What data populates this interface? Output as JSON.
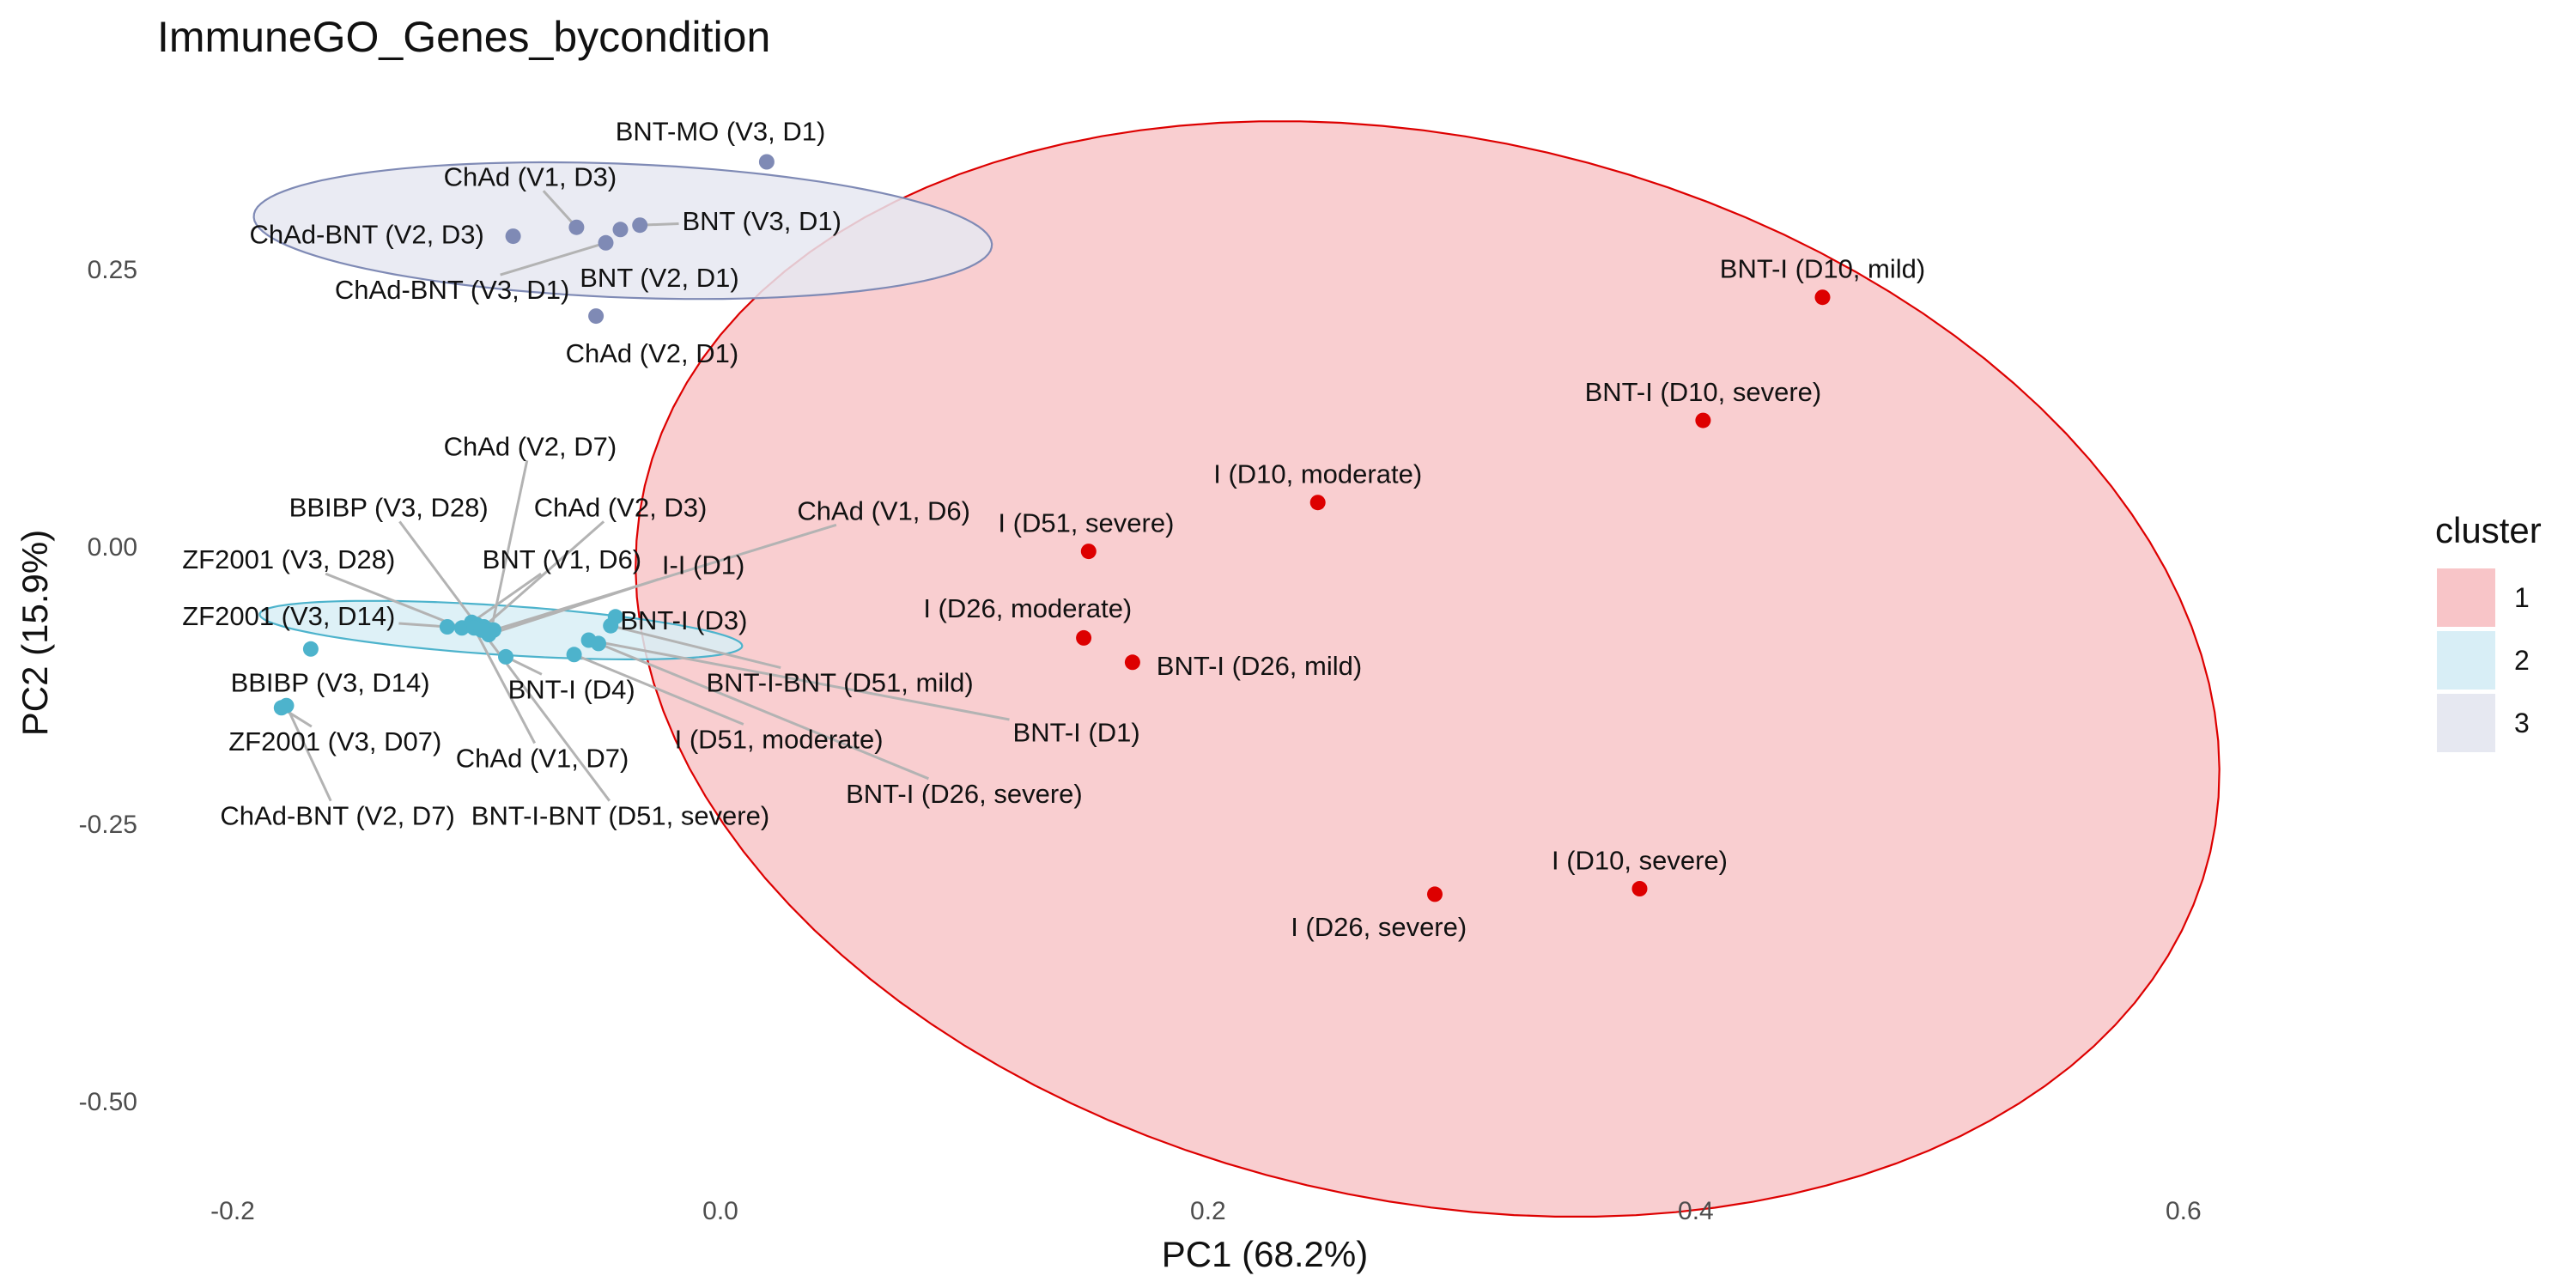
{
  "chart_data": {
    "type": "scatter",
    "title": "ImmuneGO_Genes_bycondition",
    "xlabel": "PC1 (68.2%)",
    "ylabel": "PC2 (15.9%)",
    "xlim": [
      -0.225,
      0.68
    ],
    "ylim": [
      -0.575,
      0.4
    ],
    "x_ticks": [
      {
        "value": -0.2,
        "label": "-0.2"
      },
      {
        "value": 0.0,
        "label": "0.0"
      },
      {
        "value": 0.2,
        "label": "0.2"
      },
      {
        "value": 0.4,
        "label": "0.4"
      },
      {
        "value": 0.6,
        "label": "0.6"
      }
    ],
    "y_ticks": [
      {
        "value": 0.25,
        "label": "0.25"
      },
      {
        "value": 0.0,
        "label": "0.00"
      },
      {
        "value": -0.25,
        "label": "-0.25"
      },
      {
        "value": -0.5,
        "label": "-0.50"
      }
    ],
    "grid": false,
    "legend": {
      "title": "cluster",
      "position": "right",
      "entries": [
        {
          "label": "1",
          "cluster": 1
        },
        {
          "label": "2",
          "cluster": 2
        },
        {
          "label": "3",
          "cluster": 3
        }
      ]
    },
    "clusters": [
      {
        "id": 1,
        "point_color": "#dd0000",
        "fill": "#f8c5c8",
        "stroke": "#dd0000",
        "ellipse": {
          "cx": 0.29,
          "cy": -0.11,
          "rx": 0.315,
          "ry": 0.5,
          "angle": 0.205
        }
      },
      {
        "id": 2,
        "point_color": "#4db3cc",
        "fill": "#d8eef6",
        "stroke": "#4db3cc",
        "ellipse": {
          "cx": -0.09,
          "cy": -0.075,
          "rx": 0.1,
          "ry": 0.022,
          "angle": -0.15
        }
      },
      {
        "id": 3,
        "point_color": "#7f8ab5",
        "fill": "#e6e8f1",
        "stroke": "#7f8ab5",
        "ellipse": {
          "cx": -0.04,
          "cy": 0.285,
          "rx": 0.152,
          "ry": 0.06,
          "angle": -0.1
        }
      }
    ],
    "points": [
      {
        "label": "BNT-MO (V3, D1)",
        "x": 0.019,
        "y": 0.347,
        "cluster": 3,
        "lx": 0.0,
        "ly": 0.375
      },
      {
        "label": "ChAd (V1, D3)",
        "x": -0.059,
        "y": 0.288,
        "cluster": 3,
        "lx": -0.078,
        "ly": 0.334,
        "line": true
      },
      {
        "label": "ChAd-BNT (V2, D3)",
        "x": -0.085,
        "y": 0.28,
        "cluster": 3,
        "lx": -0.145,
        "ly": 0.282
      },
      {
        "label": "BNT (V3, D1)",
        "x": -0.033,
        "y": 0.29,
        "cluster": 3,
        "lx": 0.017,
        "ly": 0.294,
        "line": true
      },
      {
        "label": "BNT (V2, D1)",
        "x": -0.041,
        "y": 0.286,
        "cluster": 3,
        "lx": -0.025,
        "ly": 0.243
      },
      {
        "label": "ChAd-BNT (V3, D1)",
        "x": -0.047,
        "y": 0.274,
        "cluster": 3,
        "lx": -0.11,
        "ly": 0.232,
        "line": true
      },
      {
        "label": "ChAd (V2, D1)",
        "x": -0.051,
        "y": 0.208,
        "cluster": 3,
        "lx": -0.028,
        "ly": 0.175
      },
      {
        "label": "BNT-I (D10, mild)",
        "x": 0.452,
        "y": 0.225,
        "cluster": 1,
        "lx": 0.452,
        "ly": 0.251
      },
      {
        "label": "BNT-I (D10, severe)",
        "x": 0.403,
        "y": 0.114,
        "cluster": 1,
        "lx": 0.403,
        "ly": 0.14
      },
      {
        "label": "I (D10, moderate)",
        "x": 0.245,
        "y": 0.04,
        "cluster": 1,
        "lx": 0.245,
        "ly": 0.066
      },
      {
        "label": "I (D51, severe)",
        "x": 0.151,
        "y": -0.004,
        "cluster": 1,
        "lx": 0.15,
        "ly": 0.022
      },
      {
        "label": "I (D26, moderate)",
        "x": 0.149,
        "y": -0.082,
        "cluster": 1,
        "lx": 0.126,
        "ly": -0.055
      },
      {
        "label": "BNT-I (D26, mild)",
        "x": 0.169,
        "y": -0.104,
        "cluster": 1,
        "lx": 0.221,
        "ly": -0.107
      },
      {
        "label": "I (D10, severe)",
        "x": 0.377,
        "y": -0.308,
        "cluster": 1,
        "lx": 0.377,
        "ly": -0.282
      },
      {
        "label": "I (D26, severe)",
        "x": 0.293,
        "y": -0.313,
        "cluster": 1,
        "lx": 0.27,
        "ly": -0.342
      },
      {
        "label": "ChAd (V2, D7)",
        "x": -0.094,
        "y": -0.075,
        "cluster": 2,
        "lx": -0.078,
        "ly": 0.091,
        "line": true
      },
      {
        "label": "BBIBP (V3, D28)",
        "x": -0.1,
        "y": -0.07,
        "cluster": 2,
        "lx": -0.136,
        "ly": 0.036,
        "line": true
      },
      {
        "label": "ChAd (V2, D3)",
        "x": -0.097,
        "y": -0.072,
        "cluster": 2,
        "lx": -0.041,
        "ly": 0.036,
        "line": true
      },
      {
        "label": "ChAd (V1, D6)",
        "x": -0.093,
        "y": -0.075,
        "cluster": 2,
        "lx": 0.067,
        "ly": 0.033,
        "line": true
      },
      {
        "label": "ZF2001 (V3, D28)",
        "x": -0.106,
        "y": -0.073,
        "cluster": 2,
        "lx": -0.177,
        "ly": -0.011,
        "line": true
      },
      {
        "label": "BNT (V1, D6)",
        "x": -0.102,
        "y": -0.068,
        "cluster": 2,
        "lx": -0.065,
        "ly": -0.011,
        "line": true
      },
      {
        "label": "I-I (D1)",
        "x": -0.095,
        "y": -0.079,
        "cluster": 2,
        "lx": -0.007,
        "ly": -0.016,
        "line": true
      },
      {
        "label": "ZF2001 (V3, D14)",
        "x": -0.112,
        "y": -0.072,
        "cluster": 2,
        "lx": -0.177,
        "ly": -0.062,
        "line": true
      },
      {
        "label": "BNT-I (D3)",
        "x": -0.043,
        "y": -0.063,
        "cluster": 2,
        "lx": -0.015,
        "ly": -0.066,
        "line": true
      },
      {
        "label": "BBIBP (V3, D14)",
        "x": -0.168,
        "y": -0.092,
        "cluster": 2,
        "lx": -0.16,
        "ly": -0.122
      },
      {
        "label": "BNT-I-BNT (D51, mild)",
        "x": -0.045,
        "y": -0.071,
        "cluster": 2,
        "lx": 0.049,
        "ly": -0.122,
        "line": true
      },
      {
        "label": "BNT-I (D4)",
        "x": -0.088,
        "y": -0.099,
        "cluster": 2,
        "lx": -0.061,
        "ly": -0.128,
        "line": true
      },
      {
        "label": "BNT-I (D1)",
        "x": -0.054,
        "y": -0.084,
        "cluster": 2,
        "lx": 0.146,
        "ly": -0.167,
        "line": true
      },
      {
        "label": "I (D51, moderate)",
        "x": -0.06,
        "y": -0.097,
        "cluster": 2,
        "lx": 0.024,
        "ly": -0.173,
        "line": true
      },
      {
        "label": "ZF2001 (V3, D07)",
        "x": -0.18,
        "y": -0.145,
        "cluster": 2,
        "lx": -0.158,
        "ly": -0.175,
        "line": true
      },
      {
        "label": "ChAd (V1, D7)",
        "x": -0.101,
        "y": -0.073,
        "cluster": 2,
        "lx": -0.073,
        "ly": -0.19,
        "line": true
      },
      {
        "label": "BNT-I (D26, severe)",
        "x": -0.05,
        "y": -0.087,
        "cluster": 2,
        "lx": 0.1,
        "ly": -0.222,
        "line": true
      },
      {
        "label": "ChAd-BNT (V2, D7)",
        "x": -0.178,
        "y": -0.143,
        "cluster": 2,
        "lx": -0.157,
        "ly": -0.242,
        "line": true
      },
      {
        "label": "BNT-I-BNT (D51, severe)",
        "x": -0.098,
        "y": -0.075,
        "cluster": 2,
        "lx": -0.041,
        "ly": -0.242,
        "line": true
      }
    ]
  }
}
